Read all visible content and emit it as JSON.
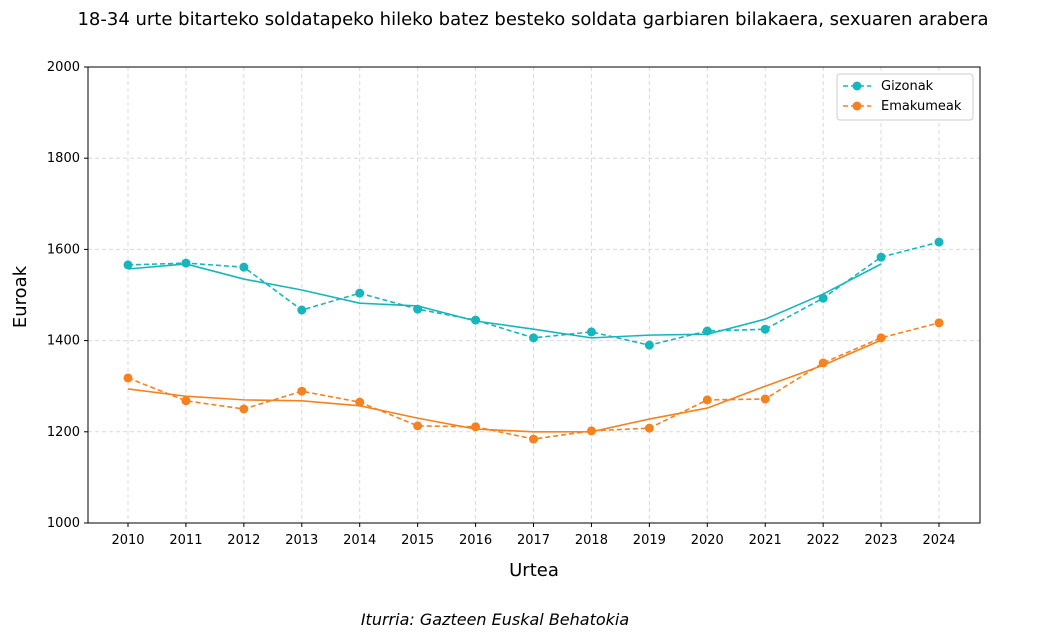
{
  "chart_data": {
    "type": "line",
    "title": "18-34 urte bitarteko soldatapeko hileko batez besteko soldata garbiaren bilakaera, sexuaren arabera",
    "xlabel": "Urtea",
    "ylabel": "Euroak",
    "source": "Iturria: Gazteen Euskal Behatokia",
    "x": [
      2010,
      2011,
      2012,
      2013,
      2014,
      2015,
      2016,
      2017,
      2018,
      2019,
      2020,
      2021,
      2022,
      2023,
      2024
    ],
    "xlim": [
      2009.3,
      2024.7
    ],
    "ylim": [
      1000,
      2000
    ],
    "yticks": [
      1000,
      1200,
      1400,
      1600,
      1800,
      2000
    ],
    "grid": true,
    "legend_position": "top-right",
    "series": [
      {
        "name": "Gizonak",
        "color": "#17b6bd",
        "style": "dashed-markers",
        "values": [
          1566,
          1570,
          1561,
          1467,
          1504,
          1469,
          1445,
          1406,
          1419,
          1390,
          1421,
          1425,
          1493,
          1583,
          1616
        ]
      },
      {
        "name": "Emakumeak",
        "color": "#f5821f",
        "style": "dashed-markers",
        "values": [
          1318,
          1268,
          1250,
          1289,
          1265,
          1213,
          1211,
          1184,
          1202,
          1208,
          1270,
          1272,
          1351,
          1406,
          1439
        ]
      }
    ],
    "trend_lines": [
      {
        "color": "#17b6bd",
        "x": [
          2010,
          2011,
          2012,
          2013,
          2014,
          2015,
          2016,
          2017,
          2018,
          2019,
          2020,
          2021,
          2022,
          2023
        ],
        "values": [
          1557,
          1568,
          1535,
          1511,
          1482,
          1476,
          1443,
          1425,
          1406,
          1412,
          1414,
          1447,
          1502,
          1568
        ]
      },
      {
        "color": "#f5821f",
        "x": [
          2010,
          2011,
          2012,
          2013,
          2014,
          2015,
          2016,
          2017,
          2018,
          2019,
          2020,
          2021,
          2022,
          2023
        ],
        "values": [
          1294,
          1278,
          1270,
          1268,
          1257,
          1230,
          1206,
          1200,
          1200,
          1228,
          1252,
          1300,
          1346,
          1401
        ]
      }
    ]
  }
}
